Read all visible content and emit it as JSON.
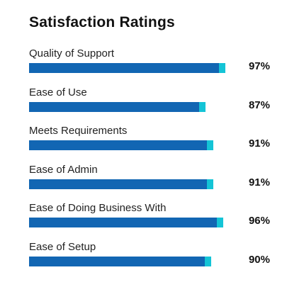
{
  "title": "Satisfaction Ratings",
  "colors": {
    "bar": "#1266b3",
    "cap": "#14c4d6",
    "text": "#111111"
  },
  "chart_data": {
    "type": "bar",
    "orientation": "horizontal",
    "title": "Satisfaction Ratings",
    "categories": [
      "Quality of Support",
      "Ease of Use",
      "Meets Requirements",
      "Ease of Admin",
      "Ease of Doing Business With",
      "Ease of Setup"
    ],
    "values": [
      97,
      87,
      91,
      91,
      96,
      90
    ],
    "value_labels": [
      "97%",
      "87%",
      "91%",
      "91%",
      "96%",
      "90%"
    ],
    "xlim": [
      0,
      100
    ],
    "grid": false,
    "legend": "none"
  }
}
